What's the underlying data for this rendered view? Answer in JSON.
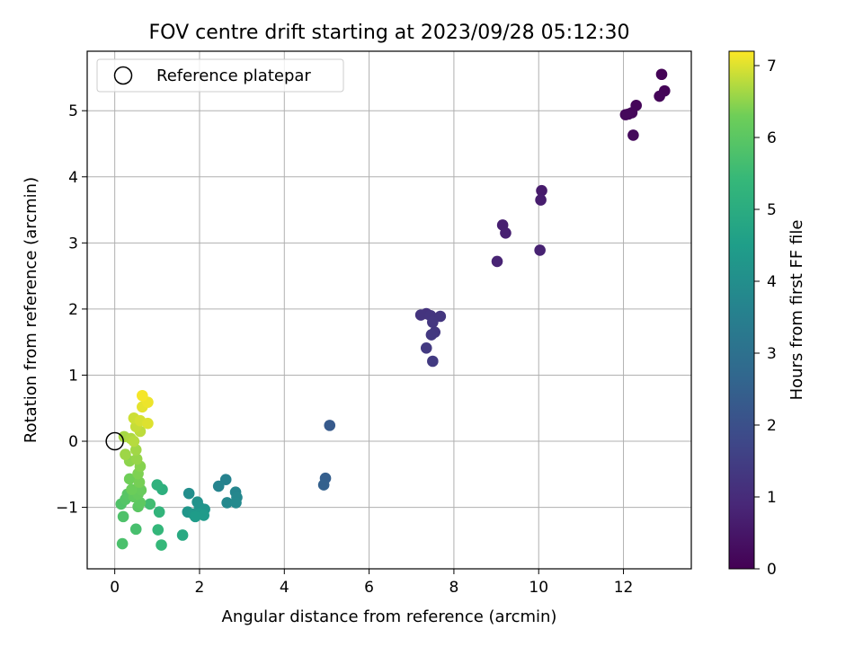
{
  "chart_data": {
    "type": "scatter",
    "title": "FOV centre drift starting at 2023/09/28 05:12:30",
    "xlabel": "Angular distance from reference (arcmin)",
    "ylabel": "Rotation from reference (arcmin)",
    "xlim": [
      -0.65,
      13.6
    ],
    "ylim": [
      -1.93,
      5.9
    ],
    "xticks": [
      0,
      2,
      4,
      6,
      8,
      10,
      12
    ],
    "yticks": [
      -1,
      0,
      1,
      2,
      3,
      4,
      5
    ],
    "grid": true,
    "legend": {
      "placement": "upper-left",
      "entries": [
        "Reference platepar"
      ]
    },
    "reference_point": {
      "x": 0,
      "y": 0
    },
    "colorbar": {
      "label": "Hours from first FF file",
      "min": 0,
      "max": 7.2,
      "ticks": [
        0,
        1,
        2,
        3,
        4,
        5,
        6,
        7
      ],
      "colormap": "viridis"
    },
    "points": [
      {
        "x": 12.9,
        "y": 5.55,
        "h": 0.05
      },
      {
        "x": 12.97,
        "y": 5.3,
        "h": 0.08
      },
      {
        "x": 12.85,
        "y": 5.22,
        "h": 0.1
      },
      {
        "x": 12.3,
        "y": 5.08,
        "h": 0.12
      },
      {
        "x": 12.2,
        "y": 4.97,
        "h": 0.14
      },
      {
        "x": 12.12,
        "y": 4.95,
        "h": 0.16
      },
      {
        "x": 12.05,
        "y": 4.94,
        "h": 0.18
      },
      {
        "x": 12.23,
        "y": 4.63,
        "h": 0.2
      },
      {
        "x": 10.07,
        "y": 3.79,
        "h": 0.6
      },
      {
        "x": 10.05,
        "y": 3.65,
        "h": 0.65
      },
      {
        "x": 9.15,
        "y": 3.27,
        "h": 0.7
      },
      {
        "x": 9.22,
        "y": 3.15,
        "h": 0.72
      },
      {
        "x": 10.03,
        "y": 2.89,
        "h": 0.75
      },
      {
        "x": 9.02,
        "y": 2.72,
        "h": 0.8
      },
      {
        "x": 7.35,
        "y": 1.93,
        "h": 1.2
      },
      {
        "x": 7.22,
        "y": 1.91,
        "h": 1.22
      },
      {
        "x": 7.45,
        "y": 1.9,
        "h": 1.25
      },
      {
        "x": 7.68,
        "y": 1.89,
        "h": 1.28
      },
      {
        "x": 7.5,
        "y": 1.8,
        "h": 1.3
      },
      {
        "x": 7.55,
        "y": 1.65,
        "h": 1.32
      },
      {
        "x": 7.47,
        "y": 1.61,
        "h": 1.35
      },
      {
        "x": 7.35,
        "y": 1.41,
        "h": 1.38
      },
      {
        "x": 7.5,
        "y": 1.21,
        "h": 1.4
      },
      {
        "x": 5.07,
        "y": 0.24,
        "h": 2.3
      },
      {
        "x": 4.97,
        "y": -0.56,
        "h": 2.45
      },
      {
        "x": 4.93,
        "y": -0.66,
        "h": 2.5
      },
      {
        "x": 2.62,
        "y": -0.58,
        "h": 3.6
      },
      {
        "x": 2.45,
        "y": -0.68,
        "h": 3.65
      },
      {
        "x": 2.85,
        "y": -0.77,
        "h": 3.7
      },
      {
        "x": 2.88,
        "y": -0.85,
        "h": 3.75
      },
      {
        "x": 2.65,
        "y": -0.93,
        "h": 3.8
      },
      {
        "x": 2.86,
        "y": -0.93,
        "h": 3.82
      },
      {
        "x": 1.75,
        "y": -0.79,
        "h": 4.0
      },
      {
        "x": 1.95,
        "y": -0.92,
        "h": 4.1
      },
      {
        "x": 2.0,
        "y": -1.0,
        "h": 4.15
      },
      {
        "x": 2.12,
        "y": -1.03,
        "h": 4.2
      },
      {
        "x": 1.72,
        "y": -1.07,
        "h": 4.25
      },
      {
        "x": 1.85,
        "y": -1.1,
        "h": 4.3
      },
      {
        "x": 2.0,
        "y": -1.1,
        "h": 4.35
      },
      {
        "x": 2.1,
        "y": -1.12,
        "h": 4.4
      },
      {
        "x": 1.9,
        "y": -1.14,
        "h": 4.45
      },
      {
        "x": 1.6,
        "y": -1.42,
        "h": 4.9
      },
      {
        "x": 1.12,
        "y": -0.73,
        "h": 5.1
      },
      {
        "x": 1.0,
        "y": -0.66,
        "h": 5.2
      },
      {
        "x": 1.05,
        "y": -1.07,
        "h": 5.3
      },
      {
        "x": 1.02,
        "y": -1.34,
        "h": 5.35
      },
      {
        "x": 1.1,
        "y": -1.57,
        "h": 5.4
      },
      {
        "x": 0.83,
        "y": -0.95,
        "h": 5.6
      },
      {
        "x": 0.5,
        "y": -1.33,
        "h": 5.7
      },
      {
        "x": 0.18,
        "y": -1.55,
        "h": 5.75
      },
      {
        "x": 0.2,
        "y": -1.14,
        "h": 5.8
      },
      {
        "x": 0.15,
        "y": -0.95,
        "h": 5.85
      },
      {
        "x": 0.25,
        "y": -0.88,
        "h": 5.9
      },
      {
        "x": 0.3,
        "y": -0.8,
        "h": 5.95
      },
      {
        "x": 0.55,
        "y": -0.99,
        "h": 6.0
      },
      {
        "x": 0.6,
        "y": -0.93,
        "h": 6.05
      },
      {
        "x": 0.45,
        "y": -0.84,
        "h": 6.1
      },
      {
        "x": 0.55,
        "y": -0.8,
        "h": 6.15
      },
      {
        "x": 0.62,
        "y": -0.74,
        "h": 6.2
      },
      {
        "x": 0.4,
        "y": -0.73,
        "h": 6.25
      },
      {
        "x": 0.35,
        "y": -0.57,
        "h": 6.3
      },
      {
        "x": 0.58,
        "y": -0.62,
        "h": 6.35
      },
      {
        "x": 0.55,
        "y": -0.49,
        "h": 6.4
      },
      {
        "x": 0.6,
        "y": -0.38,
        "h": 6.45
      },
      {
        "x": 0.35,
        "y": -0.3,
        "h": 6.5
      },
      {
        "x": 0.52,
        "y": -0.27,
        "h": 6.55
      },
      {
        "x": 0.25,
        "y": -0.2,
        "h": 6.6
      },
      {
        "x": 0.5,
        "y": -0.13,
        "h": 6.62
      },
      {
        "x": 0.22,
        "y": 0.07,
        "h": 6.65
      },
      {
        "x": 0.38,
        "y": 0.04,
        "h": 6.7
      },
      {
        "x": 0.45,
        "y": 0.0,
        "h": 6.75
      },
      {
        "x": 0.6,
        "y": 0.15,
        "h": 6.8
      },
      {
        "x": 0.5,
        "y": 0.22,
        "h": 6.85
      },
      {
        "x": 0.45,
        "y": 0.35,
        "h": 6.9
      },
      {
        "x": 0.6,
        "y": 0.31,
        "h": 6.95
      },
      {
        "x": 0.78,
        "y": 0.27,
        "h": 7.0
      },
      {
        "x": 0.65,
        "y": 0.52,
        "h": 7.05
      },
      {
        "x": 0.78,
        "y": 0.59,
        "h": 7.1
      },
      {
        "x": 0.65,
        "y": 0.69,
        "h": 7.15
      }
    ]
  }
}
